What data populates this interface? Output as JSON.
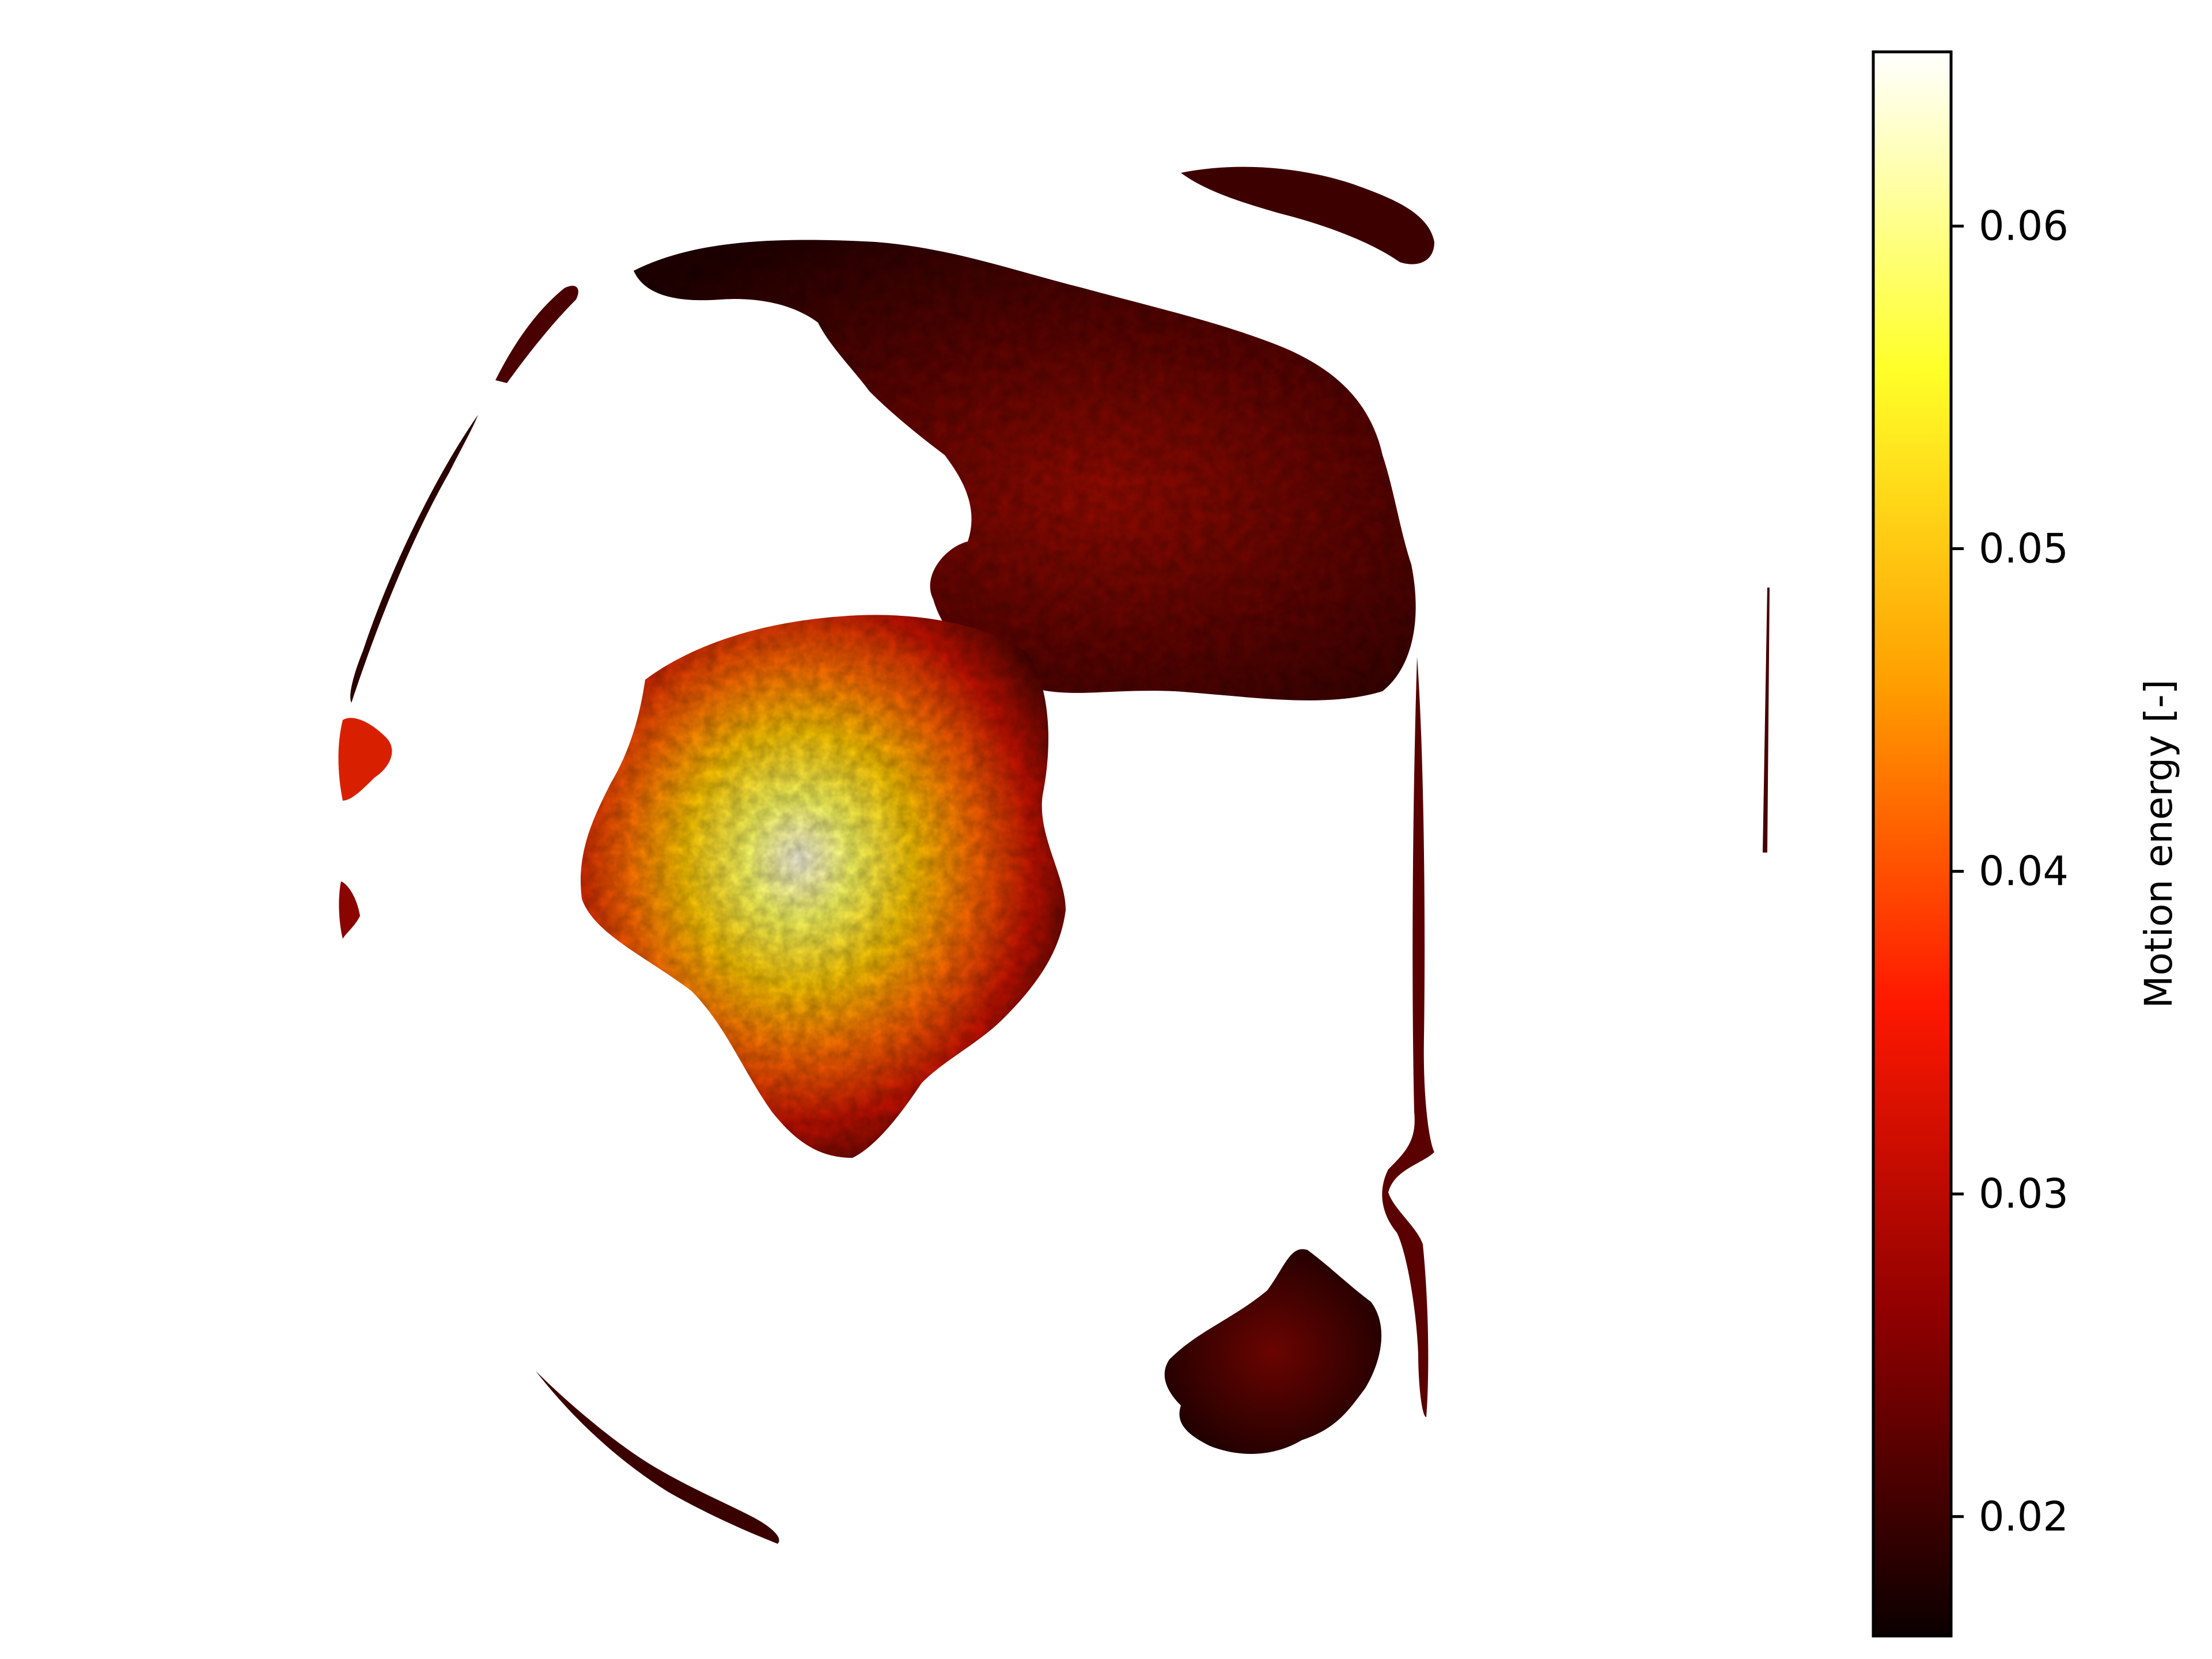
{
  "chart_data": {
    "type": "heatmap",
    "title": "",
    "xlabel": "",
    "ylabel": "",
    "axes_visible": false,
    "grid": false,
    "background": "#ffffff",
    "colormap": "hot",
    "colorbar": {
      "label": "Motion energy [-]",
      "placement": "right",
      "range": [
        0.0163,
        0.0654
      ],
      "ticks": [
        0.02,
        0.03,
        0.04,
        0.05,
        0.06
      ],
      "tick_labels": [
        "0.02",
        "0.03",
        "0.04",
        "0.05",
        "0.06"
      ],
      "colors": [
        "#0b0000",
        "#8e0000",
        "#ff1800",
        "#ff9e00",
        "#ffff29",
        "#ffffff"
      ]
    },
    "regions": [
      {
        "name": "upper-right lobe",
        "level": 0.025,
        "peak": 0.03
      },
      {
        "name": "central blob",
        "level": 0.036,
        "peak": 0.065
      },
      {
        "name": "lower-right blob",
        "level": 0.021,
        "peak": 0.026
      },
      {
        "name": "top-right arc",
        "level": 0.022,
        "peak": 0.024
      },
      {
        "name": "left rim",
        "level": 0.025,
        "peak": 0.036
      },
      {
        "name": "right vertical streak",
        "level": 0.024,
        "peak": 0.03
      },
      {
        "name": "bottom-left arc",
        "level": 0.022,
        "peak": 0.027
      }
    ]
  }
}
